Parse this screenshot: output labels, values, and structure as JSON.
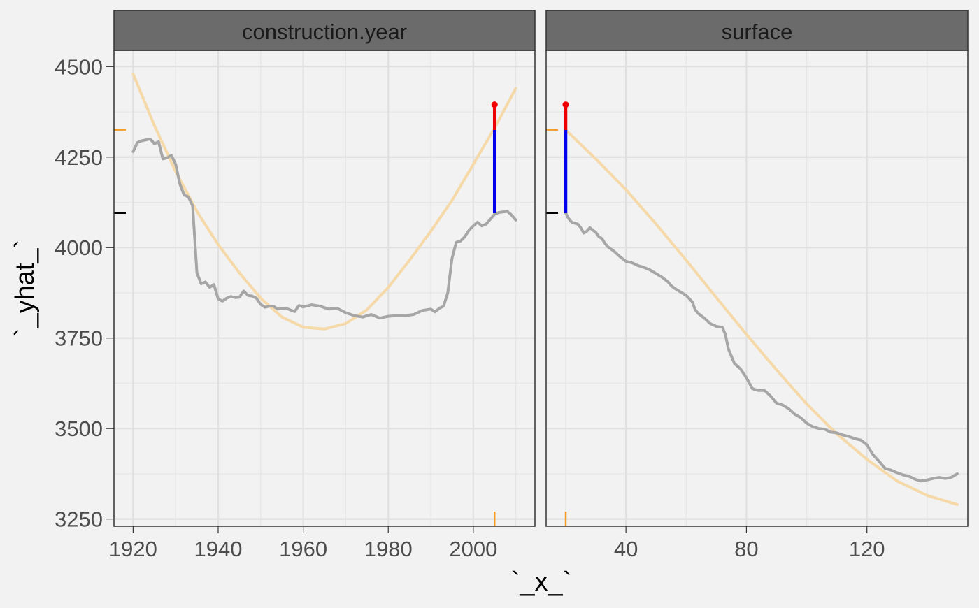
{
  "chart_data": {
    "type": "line",
    "xlabel": "`_x_`",
    "ylabel": "`_yhat_`",
    "ylim": [
      3230,
      4545
    ],
    "y_ticks": [
      3250,
      3500,
      3750,
      4000,
      4250,
      4500
    ],
    "y_tick_labels": [
      "3250",
      "3500",
      "3750",
      "4000",
      "4250",
      "4500"
    ],
    "intercept": 4095,
    "prediction": 4325,
    "observed_prediction": 4395,
    "grid": true,
    "colors": {
      "profile": "#a6a6a6",
      "smooth": "#f5d9a8",
      "increase": "#0000ee",
      "residual": "#ee0000",
      "rug": "#f59a23",
      "baseline_tick": "#000000",
      "panel_bg": "#f2f2f2",
      "strip_bg": "#6b6b6b"
    },
    "panels": [
      {
        "variable": "construction.year",
        "xlim": [
          1915.5,
          2014.5
        ],
        "x_ticks": [
          1920,
          1940,
          1960,
          1980,
          2000
        ],
        "x_tick_labels": [
          "1920",
          "1940",
          "1960",
          "1980",
          "2000"
        ],
        "observation_x": 2005,
        "profile": {
          "x": [
            1920,
            1921,
            1922,
            1924,
            1925,
            1926,
            1927,
            1928,
            1929,
            1930,
            1931,
            1932,
            1933,
            1934,
            1935,
            1936,
            1937,
            1938,
            1939,
            1940,
            1941,
            1942,
            1943,
            1944,
            1945,
            1946,
            1947,
            1948,
            1949,
            1950,
            1951,
            1952,
            1953,
            1954,
            1956,
            1958,
            1959,
            1960,
            1962,
            1964,
            1966,
            1968,
            1970,
            1972,
            1974,
            1976,
            1978,
            1980,
            1982,
            1984,
            1986,
            1988,
            1990,
            1991,
            1992,
            1993,
            1994,
            1995,
            1996,
            1997,
            1998,
            1999,
            2000,
            2001,
            2002,
            2003,
            2004,
            2005,
            2006,
            2008,
            2009,
            2010
          ],
          "y": [
            4265,
            4290,
            4295,
            4300,
            4287,
            4292,
            4245,
            4248,
            4255,
            4230,
            4175,
            4145,
            4140,
            4115,
            3930,
            3900,
            3905,
            3890,
            3898,
            3858,
            3852,
            3860,
            3865,
            3862,
            3863,
            3880,
            3868,
            3866,
            3860,
            3843,
            3835,
            3838,
            3838,
            3830,
            3832,
            3823,
            3840,
            3836,
            3842,
            3838,
            3830,
            3832,
            3820,
            3812,
            3808,
            3815,
            3805,
            3810,
            3812,
            3812,
            3815,
            3826,
            3830,
            3822,
            3832,
            3838,
            3875,
            3970,
            4015,
            4018,
            4030,
            4048,
            4060,
            4070,
            4060,
            4065,
            4078,
            4092,
            4097,
            4100,
            4090,
            4076
          ]
        },
        "smooth": {
          "x": [
            1920,
            1925,
            1930,
            1935,
            1940,
            1945,
            1950,
            1955,
            1960,
            1965,
            1970,
            1975,
            1980,
            1985,
            1990,
            1995,
            2000,
            2005,
            2010
          ],
          "y": [
            4480,
            4337,
            4210,
            4100,
            4008,
            3930,
            3860,
            3808,
            3780,
            3775,
            3790,
            3828,
            3890,
            3965,
            4045,
            4130,
            4230,
            4330,
            4440
          ]
        }
      },
      {
        "variable": "surface",
        "xlim": [
          13.5,
          153.5
        ],
        "x_ticks": [
          40,
          80,
          120
        ],
        "x_tick_labels": [
          "40",
          "80",
          "120"
        ],
        "observation_x": 20,
        "profile": {
          "x": [
            20,
            21,
            22,
            24,
            25,
            26,
            27,
            28,
            29,
            30,
            31,
            32,
            33,
            34,
            36,
            38,
            40,
            42,
            44,
            46,
            48,
            50,
            52,
            54,
            55,
            56,
            58,
            60,
            62,
            63,
            64,
            66,
            68,
            70,
            72,
            73,
            74,
            75,
            76,
            78,
            80,
            82,
            84,
            86,
            88,
            90,
            92,
            94,
            96,
            98,
            100,
            102,
            104,
            106,
            108,
            110,
            112,
            114,
            116,
            118,
            120,
            122,
            124,
            126,
            128,
            130,
            132,
            134,
            136,
            138,
            140,
            142,
            144,
            146,
            148,
            150
          ],
          "y": [
            4095,
            4080,
            4070,
            4065,
            4055,
            4040,
            4045,
            4055,
            4048,
            4042,
            4030,
            4025,
            4012,
            4002,
            3990,
            3975,
            3962,
            3958,
            3950,
            3945,
            3938,
            3928,
            3918,
            3905,
            3895,
            3888,
            3878,
            3868,
            3850,
            3828,
            3818,
            3805,
            3790,
            3782,
            3780,
            3760,
            3720,
            3700,
            3680,
            3665,
            3640,
            3610,
            3605,
            3605,
            3590,
            3570,
            3565,
            3555,
            3540,
            3530,
            3515,
            3505,
            3500,
            3498,
            3490,
            3488,
            3482,
            3478,
            3472,
            3468,
            3455,
            3428,
            3410,
            3390,
            3385,
            3378,
            3372,
            3368,
            3360,
            3355,
            3358,
            3362,
            3365,
            3362,
            3365,
            3375
          ]
        },
        "smooth": {
          "x": [
            20,
            30,
            40,
            50,
            60,
            70,
            80,
            90,
            100,
            110,
            120,
            130,
            140,
            150
          ],
          "y": [
            4325,
            4245,
            4160,
            4065,
            3965,
            3862,
            3760,
            3662,
            3568,
            3485,
            3415,
            3355,
            3315,
            3290
          ]
        }
      }
    ]
  }
}
